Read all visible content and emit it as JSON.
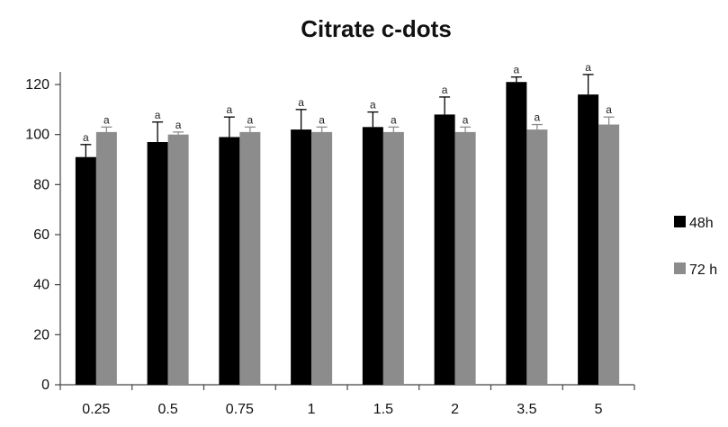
{
  "chart_data": {
    "type": "bar",
    "title": "Citrate c-dots",
    "xlabel": "",
    "ylabel": "",
    "categories": [
      "0.25",
      "0.5",
      "0.75",
      "1",
      "1.5",
      "2",
      "3.5",
      "5"
    ],
    "series": [
      {
        "name": "48h",
        "values": [
          91,
          97,
          99,
          102,
          103,
          108,
          121,
          116
        ],
        "error": [
          5,
          8,
          8,
          8,
          6,
          7,
          2,
          8
        ],
        "annotations": [
          "a",
          "a",
          "a",
          "a",
          "a",
          "a",
          "a",
          "a"
        ],
        "color": "#000000"
      },
      {
        "name": "72 h",
        "values": [
          101,
          100,
          101,
          101,
          101,
          101,
          102,
          104
        ],
        "error": [
          2,
          1,
          2,
          2,
          2,
          2,
          2,
          3
        ],
        "annotations": [
          "a",
          "a",
          "a",
          "a",
          "a",
          "a",
          "a",
          "a"
        ],
        "color": "#8c8c8c"
      }
    ],
    "ylim": [
      0,
      120
    ],
    "yticks": [
      0,
      20,
      40,
      60,
      80,
      100,
      120
    ],
    "grid": false,
    "legend_position": "right"
  }
}
